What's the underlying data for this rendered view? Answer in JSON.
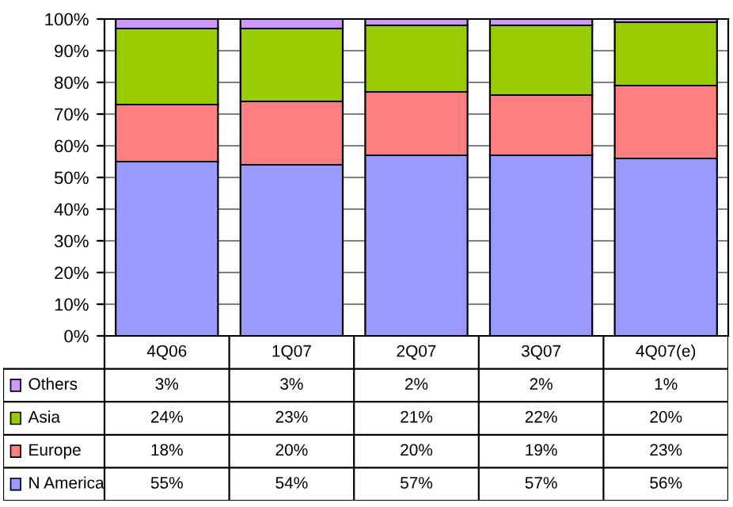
{
  "chart_data": {
    "type": "bar",
    "stacked": true,
    "categories": [
      "4Q06",
      "1Q07",
      "2Q07",
      "3Q07",
      "4Q07(e)"
    ],
    "series": [
      {
        "name": "N America",
        "color": "#9999ff",
        "values": [
          55,
          54,
          57,
          57,
          56
        ],
        "value_labels": [
          "55%",
          "54%",
          "57%",
          "57%",
          "56%"
        ]
      },
      {
        "name": "Europe",
        "color": "#ff8080",
        "values": [
          18,
          20,
          20,
          19,
          23
        ],
        "value_labels": [
          "18%",
          "20%",
          "20%",
          "19%",
          "23%"
        ]
      },
      {
        "name": "Asia",
        "color": "#99cc00",
        "values": [
          24,
          23,
          21,
          22,
          20
        ],
        "value_labels": [
          "24%",
          "23%",
          "21%",
          "22%",
          "20%"
        ]
      },
      {
        "name": "Others",
        "color": "#cc99ff",
        "values": [
          3,
          3,
          2,
          2,
          1
        ],
        "value_labels": [
          "3%",
          "3%",
          "2%",
          "2%",
          "1%"
        ]
      }
    ],
    "ylim": [
      0,
      100
    ],
    "yticks": [
      {
        "value": 0,
        "label": "0%"
      },
      {
        "value": 10,
        "label": "10%"
      },
      {
        "value": 20,
        "label": "20%"
      },
      {
        "value": 30,
        "label": "30%"
      },
      {
        "value": 40,
        "label": "40%"
      },
      {
        "value": 50,
        "label": "50%"
      },
      {
        "value": 60,
        "label": "60%"
      },
      {
        "value": 70,
        "label": "70%"
      },
      {
        "value": 80,
        "label": "80%"
      },
      {
        "value": 90,
        "label": "90%"
      },
      {
        "value": 100,
        "label": "100%"
      }
    ],
    "grid": "y",
    "legend": "bottom left"
  }
}
